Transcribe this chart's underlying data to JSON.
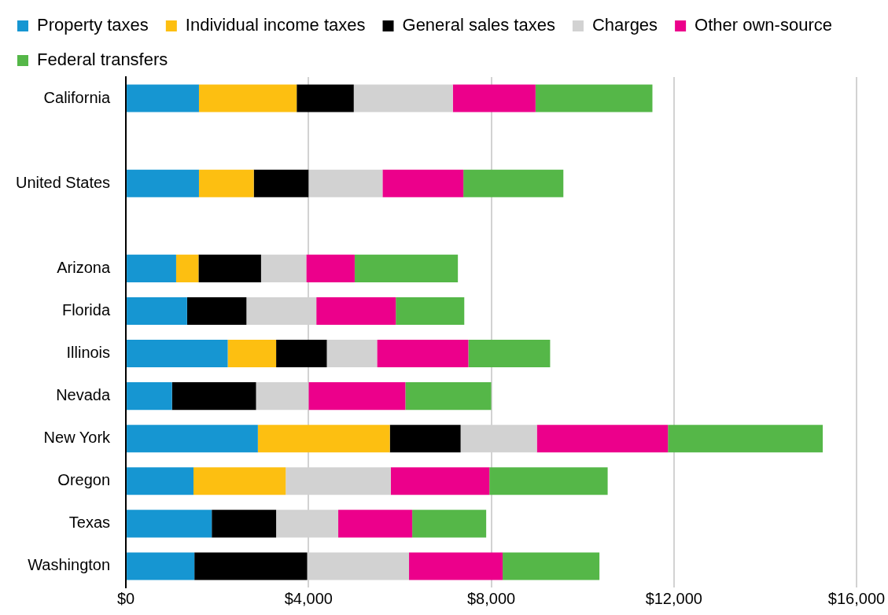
{
  "chart_data": {
    "type": "bar",
    "orientation": "horizontal",
    "stacked": true,
    "categories": [
      "California",
      null,
      "United States",
      null,
      "Arizona",
      "Florida",
      "Illinois",
      "Nevada",
      "New York",
      "Oregon",
      "Texas",
      "Washington"
    ],
    "series": [
      {
        "name": "Property taxes",
        "color": "#1696d2",
        "values": [
          1600,
          null,
          1600,
          null,
          1100,
          1340,
          2230,
          1010,
          2890,
          1480,
          1880,
          1500
        ]
      },
      {
        "name": "Individual income taxes",
        "color": "#fdbf11",
        "values": [
          2140,
          null,
          1200,
          null,
          490,
          0,
          1060,
          0,
          2890,
          2020,
          0,
          0
        ]
      },
      {
        "name": "General sales taxes",
        "color": "#000000",
        "values": [
          1250,
          null,
          1200,
          null,
          1370,
          1300,
          1110,
          1840,
          1550,
          0,
          1410,
          2470
        ]
      },
      {
        "name": "Charges",
        "color": "#d2d2d2",
        "values": [
          2170,
          null,
          1620,
          null,
          990,
          1530,
          1100,
          1150,
          1670,
          2300,
          1360,
          2230
        ]
      },
      {
        "name": "Other own-source",
        "color": "#ec008b",
        "values": [
          1810,
          null,
          1770,
          null,
          1060,
          1740,
          2000,
          2120,
          2870,
          2160,
          1620,
          2050
        ]
      },
      {
        "name": "Federal transfers",
        "color": "#55b748",
        "values": [
          2560,
          null,
          2190,
          null,
          2260,
          1500,
          1790,
          1880,
          3390,
          2590,
          1620,
          2120
        ]
      }
    ],
    "xlim": [
      0,
      16000
    ],
    "xticks": [
      {
        "value": 0,
        "label": "$0"
      },
      {
        "value": 4000,
        "label": "$4,000"
      },
      {
        "value": 8000,
        "label": "$8,000"
      },
      {
        "value": 12000,
        "label": "$12,000"
      },
      {
        "value": 16000,
        "label": "$16,000"
      }
    ],
    "grid": "x",
    "legend": "top"
  }
}
